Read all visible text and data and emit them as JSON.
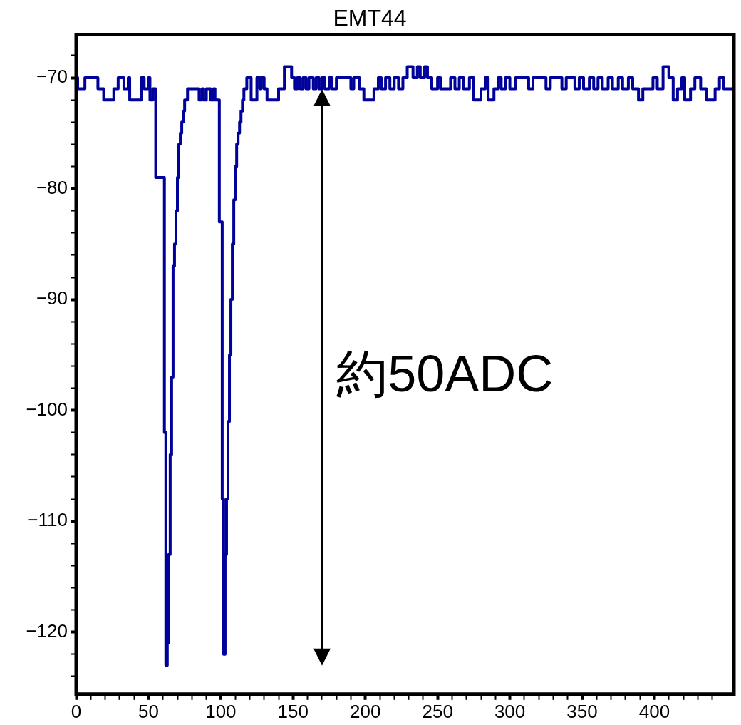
{
  "chart_data": {
    "type": "step",
    "title": "EMT44",
    "x": [
      0,
      1,
      6,
      15,
      19,
      26,
      29,
      33,
      36,
      37,
      45,
      47,
      50,
      51,
      53,
      55,
      61,
      62,
      63,
      64,
      65,
      66,
      67,
      68,
      69,
      70,
      71,
      72,
      73,
      74,
      75,
      77,
      85,
      87,
      88,
      90,
      93,
      95,
      96,
      99,
      101,
      102,
      103,
      104,
      105,
      106,
      107,
      108,
      109,
      110,
      111,
      112,
      113,
      114,
      115,
      116,
      118,
      121,
      125,
      127,
      128,
      130,
      132,
      140,
      144,
      149,
      151,
      153,
      155,
      157,
      159,
      161,
      164,
      166,
      168,
      170,
      172,
      175,
      177,
      180,
      190,
      192,
      196,
      199,
      206,
      209,
      211,
      214,
      217,
      220,
      223,
      226,
      229,
      233,
      236,
      238,
      241,
      243,
      246,
      250,
      252,
      259,
      262,
      265,
      268,
      272,
      275,
      280,
      283,
      285,
      289,
      292,
      294,
      297,
      300,
      304,
      313,
      316,
      325,
      328,
      336,
      339,
      345,
      348,
      351,
      355,
      358,
      361,
      364,
      368,
      371,
      375,
      378,
      382,
      385,
      389,
      392,
      399,
      402,
      406,
      410,
      413,
      416,
      419,
      421,
      425,
      428,
      432,
      436,
      442,
      445,
      448,
      451,
      454
    ],
    "series": [
      {
        "color": "#00009a",
        "values": [
          -71,
          -70,
          -71,
          -70,
          -71,
          -72,
          -71,
          -70,
          -71,
          -70,
          -72,
          -70,
          -71,
          -70,
          -72,
          -71,
          -79,
          -102,
          -123,
          -121,
          -113,
          -104,
          -97,
          -87,
          -85,
          -82,
          -79,
          -76,
          -75,
          -74,
          -73,
          -72,
          -71,
          -72,
          -71,
          -72,
          -71,
          -72,
          -71,
          -72,
          -83,
          -108,
          -122,
          -113,
          -108,
          -101,
          -95,
          -90,
          -85,
          -81,
          -78,
          -76,
          -75,
          -74,
          -73,
          -72,
          -71,
          -70,
          -72,
          -70,
          -71,
          -70,
          -71,
          -72,
          -71,
          -69,
          -70,
          -71,
          -70,
          -71,
          -70,
          -71,
          -70,
          -71,
          -70,
          -71,
          -70,
          -71,
          -70,
          -71,
          -70,
          -71,
          -70,
          -71,
          -72,
          -71,
          -70,
          -71,
          -70,
          -71,
          -70,
          -71,
          -70,
          -69,
          -70,
          -69,
          -70,
          -69,
          -70,
          -71,
          -70,
          -71,
          -70,
          -71,
          -70,
          -71,
          -70,
          -72,
          -71,
          -70,
          -72,
          -71,
          -70,
          -71,
          -70,
          -71,
          -70,
          -71,
          -70,
          -71,
          -70,
          -71,
          -70,
          -71,
          -70,
          -71,
          -70,
          -71,
          -70,
          -71,
          -70,
          -71,
          -70,
          -71,
          -70,
          -71,
          -72,
          -71,
          -70,
          -71,
          -69,
          -70,
          -72,
          -71,
          -70,
          -72,
          -71,
          -70,
          -71,
          -72,
          -71,
          -70,
          -71,
          -71
        ]
      }
    ],
    "xlim": [
      0,
      455
    ],
    "ylim": [
      -125.6,
      -66.1
    ],
    "xticks": [
      0,
      {
        "value": 10,
        "label": null
      },
      {
        "value": 20,
        "label": null
      },
      {
        "value": 30,
        "label": null
      },
      {
        "value": 40,
        "label": null
      },
      50,
      {
        "value": 60,
        "label": null
      },
      {
        "value": 70,
        "label": null
      },
      {
        "value": 80,
        "label": null
      },
      {
        "value": 90,
        "label": null
      },
      100,
      {
        "value": 110,
        "label": null
      },
      {
        "value": 120,
        "label": null
      },
      {
        "value": 130,
        "label": null
      },
      {
        "value": 140,
        "label": null
      },
      150,
      {
        "value": 160,
        "label": null
      },
      {
        "value": 170,
        "label": null
      },
      {
        "value": 180,
        "label": null
      },
      {
        "value": 190,
        "label": null
      },
      200,
      {
        "value": 210,
        "label": null
      },
      {
        "value": 220,
        "label": null
      },
      {
        "value": 230,
        "label": null
      },
      {
        "value": 240,
        "label": null
      },
      250,
      {
        "value": 260,
        "label": null
      },
      {
        "value": 270,
        "label": null
      },
      {
        "value": 280,
        "label": null
      },
      {
        "value": 290,
        "label": null
      },
      300,
      {
        "value": 310,
        "label": null
      },
      {
        "value": 320,
        "label": null
      },
      {
        "value": 330,
        "label": null
      },
      {
        "value": 340,
        "label": null
      },
      350,
      {
        "value": 360,
        "label": null
      },
      {
        "value": 370,
        "label": null
      },
      {
        "value": 380,
        "label": null
      },
      {
        "value": 390,
        "label": null
      },
      400,
      {
        "value": 410,
        "label": null
      },
      {
        "value": 420,
        "label": null
      },
      {
        "value": 430,
        "label": null
      },
      {
        "value": 440,
        "label": null
      }
    ],
    "yticks": [
      {
        "value": -124,
        "label": null
      },
      {
        "value": -122,
        "label": null
      },
      {
        "value": -120,
        "label": "−120"
      },
      {
        "value": -118,
        "label": null
      },
      {
        "value": -116,
        "label": null
      },
      {
        "value": -114,
        "label": null
      },
      {
        "value": -112,
        "label": null
      },
      {
        "value": -110,
        "label": "−110"
      },
      {
        "value": -108,
        "label": null
      },
      {
        "value": -106,
        "label": null
      },
      {
        "value": -104,
        "label": null
      },
      {
        "value": -102,
        "label": null
      },
      {
        "value": -100,
        "label": "−100"
      },
      {
        "value": -98,
        "label": null
      },
      {
        "value": -96,
        "label": null
      },
      {
        "value": -94,
        "label": null
      },
      {
        "value": -92,
        "label": null
      },
      {
        "value": -90,
        "label": "−90"
      },
      {
        "value": -88,
        "label": null
      },
      {
        "value": -86,
        "label": null
      },
      {
        "value": -84,
        "label": null
      },
      {
        "value": -82,
        "label": null
      },
      {
        "value": -80,
        "label": "−80"
      },
      {
        "value": -78,
        "label": null
      },
      {
        "value": -76,
        "label": null
      },
      {
        "value": -74,
        "label": null
      },
      {
        "value": -72,
        "label": null
      },
      {
        "value": -70,
        "label": "−70"
      },
      {
        "value": -68,
        "label": null
      }
    ],
    "annotations": [
      "約50ADC"
    ]
  }
}
